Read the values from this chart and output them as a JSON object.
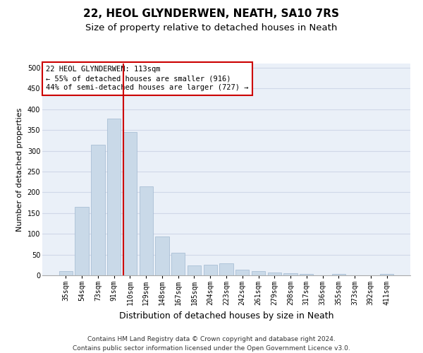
{
  "title": "22, HEOL GLYNDERWEN, NEATH, SA10 7RS",
  "subtitle": "Size of property relative to detached houses in Neath",
  "xlabel": "Distribution of detached houses by size in Neath",
  "ylabel": "Number of detached properties",
  "bar_labels": [
    "35sqm",
    "54sqm",
    "73sqm",
    "91sqm",
    "110sqm",
    "129sqm",
    "148sqm",
    "167sqm",
    "185sqm",
    "204sqm",
    "223sqm",
    "242sqm",
    "261sqm",
    "279sqm",
    "298sqm",
    "317sqm",
    "336sqm",
    "355sqm",
    "373sqm",
    "392sqm",
    "411sqm"
  ],
  "bar_values": [
    11,
    165,
    315,
    377,
    345,
    215,
    93,
    55,
    24,
    26,
    29,
    13,
    11,
    6,
    5,
    4,
    0,
    4,
    0,
    0,
    4
  ],
  "bar_color": "#c9d9e8",
  "bar_edge_color": "#a0b8d0",
  "grid_color": "#d0d8e8",
  "background_color": "#eaf0f8",
  "vline_x": 3.57,
  "vline_color": "#cc0000",
  "annotation_lines": [
    "22 HEOL GLYNDERWEN: 113sqm",
    "← 55% of detached houses are smaller (916)",
    "44% of semi-detached houses are larger (727) →"
  ],
  "annotation_box_color": "#ffffff",
  "annotation_box_edge": "#cc0000",
  "ylim": [
    0,
    510
  ],
  "yticks": [
    0,
    50,
    100,
    150,
    200,
    250,
    300,
    350,
    400,
    450,
    500
  ],
  "footer_line1": "Contains HM Land Registry data © Crown copyright and database right 2024.",
  "footer_line2": "Contains public sector information licensed under the Open Government Licence v3.0.",
  "title_fontsize": 11,
  "subtitle_fontsize": 9.5,
  "xlabel_fontsize": 9,
  "ylabel_fontsize": 8,
  "tick_fontsize": 7,
  "annotation_fontsize": 7.5,
  "footer_fontsize": 6.5
}
